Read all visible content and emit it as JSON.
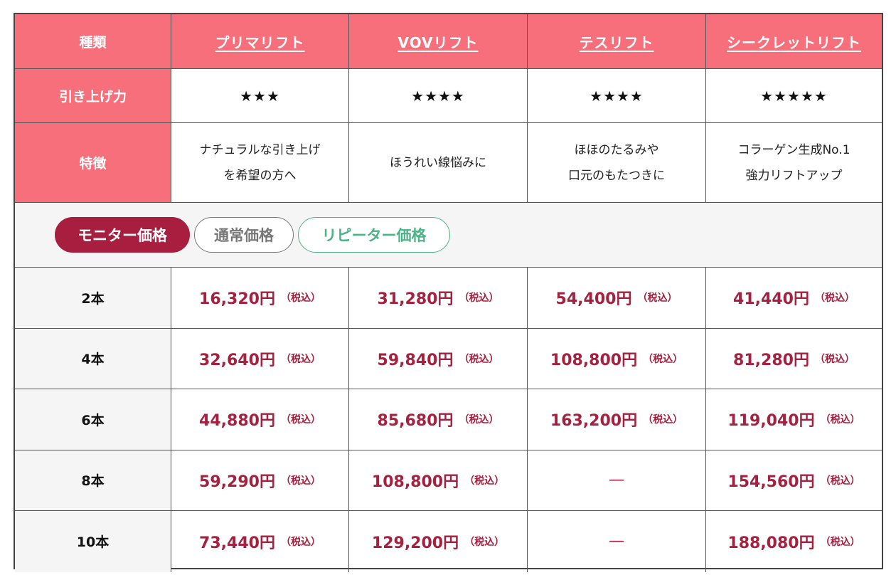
{
  "header": {
    "type_label": "種類",
    "products": [
      {
        "name": "プリマリフト"
      },
      {
        "name": "VOVリフト"
      },
      {
        "name": "テスリフト"
      },
      {
        "name": "シークレットリフト"
      }
    ]
  },
  "lift": {
    "label": "引き上げ力",
    "stars": [
      "★★★",
      "★★★★",
      "★★★★",
      "★★★★★"
    ]
  },
  "features": {
    "label": "特徴",
    "items": [
      [
        "ナチュラルな引き上げ",
        "を希望の方へ"
      ],
      [
        "ほうれい線悩みに"
      ],
      [
        "ほほのたるみや",
        "口元のもたつきに"
      ],
      [
        "コラーゲン生成No.1",
        "強力リフトアップ"
      ]
    ]
  },
  "tabs": {
    "monitor": "モニター価格",
    "normal": "通常価格",
    "repeater": "リピーター価格",
    "active": "monitor"
  },
  "tax_label": "（税込）",
  "prices": [
    {
      "qty": "2本",
      "values": [
        "16,320円",
        "31,280円",
        "54,400円",
        "41,440円"
      ]
    },
    {
      "qty": "4本",
      "values": [
        "32,640円",
        "59,840円",
        "108,800円",
        "81,280円"
      ]
    },
    {
      "qty": "6本",
      "values": [
        "44,880円",
        "85,680円",
        "163,200円",
        "119,040円"
      ]
    },
    {
      "qty": "8本",
      "values": [
        "59,290円",
        "108,800円",
        "—",
        "154,560円"
      ]
    },
    {
      "qty": "10本",
      "values": [
        "73,440円",
        "129,200円",
        "—",
        "188,080円"
      ]
    }
  ],
  "colors": {
    "header_bg": "#f66f7a",
    "price_text": "#a5213f",
    "monitor_tab": "#a81e3e",
    "repeater_tab": "#4cb287"
  }
}
